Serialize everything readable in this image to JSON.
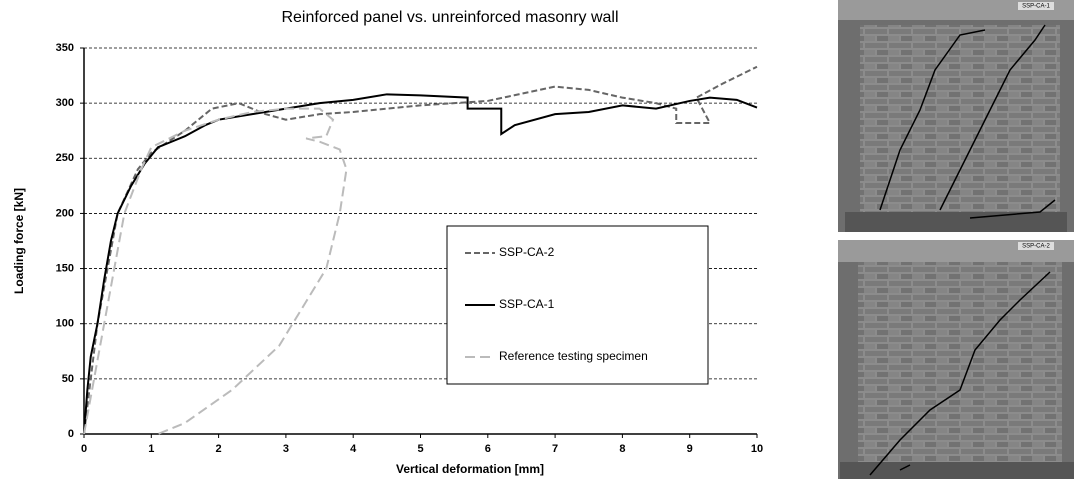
{
  "chart_data": {
    "type": "line",
    "title": "Reinforced panel vs. unreinforced masonry wall",
    "x_label": "Vertical deformation [mm]",
    "y_label": "Loading force [kN]",
    "xlim": [
      0,
      10
    ],
    "ylim": [
      0,
      350
    ],
    "xticks": [
      0,
      1,
      2,
      3,
      4,
      5,
      6,
      7,
      8,
      9,
      10
    ],
    "yticks": [
      0,
      50,
      100,
      150,
      200,
      250,
      300,
      350
    ],
    "grid": true,
    "legend_position": "right",
    "series": [
      {
        "name": "SSP-CA-2",
        "color": "#666666",
        "style": "dashed",
        "x": [
          0,
          0.1,
          0.2,
          0.35,
          0.5,
          0.8,
          1,
          1.5,
          1.9,
          2.3,
          2.7,
          3,
          3.5,
          4,
          5,
          6,
          7,
          7.5,
          8,
          8.5,
          8.8,
          8.8,
          9.3,
          9.1,
          9.5,
          10
        ],
        "values": [
          0,
          50,
          100,
          150,
          200,
          240,
          255,
          275,
          295,
          300,
          290,
          285,
          290,
          292,
          298,
          302,
          315,
          312,
          305,
          300,
          295,
          282,
          282,
          305,
          318,
          333
        ]
      },
      {
        "name": "SSP-CA-1",
        "color": "#000000",
        "style": "solid",
        "x": [
          0,
          0.05,
          0.1,
          0.2,
          0.3,
          0.4,
          0.5,
          0.7,
          0.9,
          1.1,
          1.3,
          1.5,
          1.8,
          2,
          2.5,
          3,
          3.5,
          4,
          4.5,
          5,
          5.7,
          5.7,
          6.2,
          6.2,
          6.4,
          7,
          7.5,
          8,
          8.5,
          9,
          9.3,
          9.7,
          10
        ],
        "values": [
          0,
          40,
          70,
          100,
          140,
          175,
          200,
          225,
          245,
          260,
          265,
          270,
          280,
          285,
          290,
          295,
          300,
          303,
          308,
          307,
          305,
          295,
          295,
          272,
          280,
          290,
          292,
          298,
          295,
          302,
          305,
          303,
          296
        ]
      },
      {
        "name": "Reference testing specimen",
        "color": "#bbbbbb",
        "style": "longdash",
        "x": [
          0,
          0.15,
          0.3,
          0.45,
          0.6,
          0.85,
          1,
          1.5,
          2,
          2.5,
          3,
          3.5,
          3.7,
          3.6,
          3.3,
          3.5,
          3.8,
          3.9,
          3.8,
          3.6,
          3.3,
          2.9,
          2.2,
          1.5,
          1.1
        ],
        "values": [
          0,
          50,
          100,
          150,
          200,
          240,
          260,
          275,
          285,
          292,
          295,
          295,
          285,
          270,
          268,
          265,
          258,
          240,
          200,
          150,
          120,
          80,
          40,
          10,
          0
        ]
      }
    ]
  },
  "photos": [
    {
      "label": "SSP-CA-1"
    },
    {
      "label": "SSP-CA-2"
    }
  ]
}
